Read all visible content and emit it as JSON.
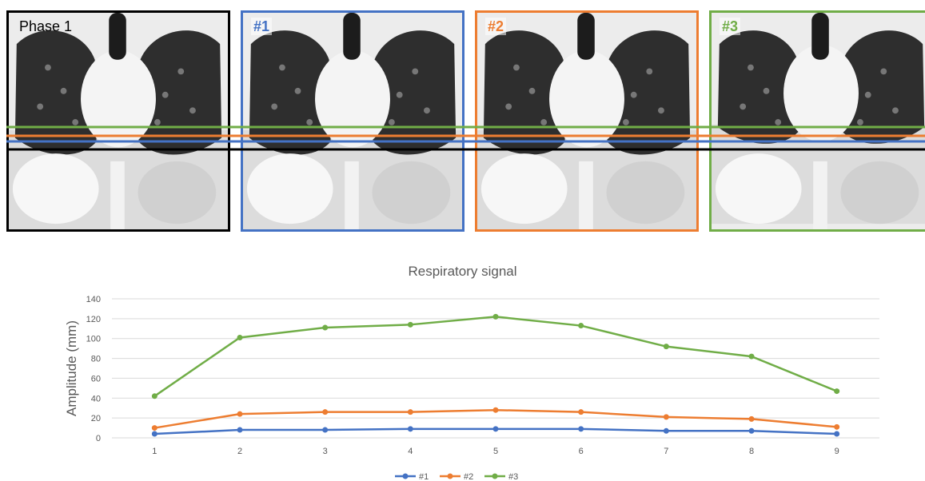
{
  "panels": [
    {
      "label": "Phase 1",
      "border_color": "#000000",
      "label_color": "#000000"
    },
    {
      "label": "#1",
      "border_color": "#4472c4",
      "label_color": "#4472c4"
    },
    {
      "label": "#2",
      "border_color": "#ed7d31",
      "label_color": "#ed7d31"
    },
    {
      "label": "#3",
      "border_color": "#70ad47",
      "label_color": "#70ad47"
    }
  ],
  "reference_lines": [
    {
      "name": "#3",
      "color": "#70ad47"
    },
    {
      "name": "#2",
      "color": "#ed7d31"
    },
    {
      "name": "#1",
      "color": "#4472c4"
    },
    {
      "name": "Phase 1",
      "color": "#000000"
    }
  ],
  "chart_data": {
    "type": "line",
    "title": "Respiratory signal",
    "xlabel": "",
    "ylabel": "Amplitude (mm)",
    "x": [
      1,
      2,
      3,
      4,
      5,
      6,
      7,
      8,
      9
    ],
    "ylim": [
      0,
      140
    ],
    "yticks": [
      0,
      20,
      40,
      60,
      80,
      100,
      120,
      140
    ],
    "grid": true,
    "legend_position": "bottom",
    "series": [
      {
        "name": "#1",
        "color": "#4472c4",
        "values": [
          4,
          8,
          8,
          9,
          9,
          9,
          7,
          7,
          4
        ]
      },
      {
        "name": "#2",
        "color": "#ed7d31",
        "values": [
          10,
          24,
          26,
          26,
          28,
          26,
          21,
          19,
          11
        ]
      },
      {
        "name": "#3",
        "color": "#70ad47",
        "values": [
          42,
          101,
          111,
          114,
          122,
          113,
          92,
          82,
          47
        ]
      }
    ]
  }
}
